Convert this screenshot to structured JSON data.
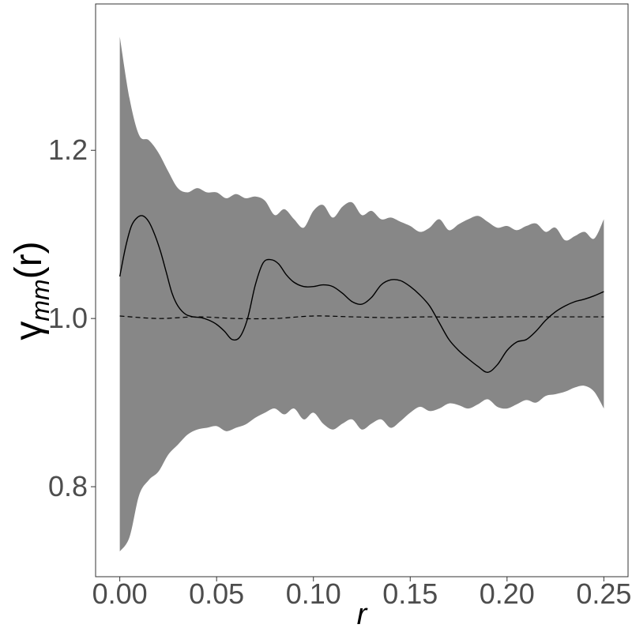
{
  "chart_data": {
    "type": "line",
    "title": "",
    "xlabel": "r",
    "ylabel": {
      "base": "γ",
      "subscript": "mm",
      "suffix": "(r)"
    },
    "xlim": [
      -0.0125,
      0.2625
    ],
    "ylim": [
      0.693,
      1.374
    ],
    "xticks": [
      0.0,
      0.05,
      0.1,
      0.15,
      0.2,
      0.25
    ],
    "xtick_labels": [
      "0.00",
      "0.05",
      "0.10",
      "0.15",
      "0.20",
      "0.25"
    ],
    "yticks": [
      0.8,
      1.0,
      1.2
    ],
    "ytick_labels": [
      "0.8",
      "1.0",
      "1.2"
    ],
    "grid": false,
    "legend": "none",
    "colors": {
      "envelope": "#878787",
      "line": "#000000",
      "axis": "#333333",
      "tick_text": "#4d4d4d"
    },
    "envelope": {
      "x": [
        0.0,
        0.005,
        0.01,
        0.015,
        0.02,
        0.025,
        0.03,
        0.035,
        0.04,
        0.045,
        0.05,
        0.055,
        0.06,
        0.065,
        0.07,
        0.075,
        0.08,
        0.085,
        0.09,
        0.095,
        0.1,
        0.105,
        0.11,
        0.115,
        0.12,
        0.125,
        0.13,
        0.135,
        0.14,
        0.145,
        0.15,
        0.155,
        0.16,
        0.165,
        0.17,
        0.175,
        0.18,
        0.185,
        0.19,
        0.195,
        0.2,
        0.205,
        0.21,
        0.215,
        0.22,
        0.225,
        0.23,
        0.235,
        0.24,
        0.245,
        0.25
      ],
      "upper": [
        1.335,
        1.262,
        1.218,
        1.212,
        1.197,
        1.175,
        1.155,
        1.15,
        1.155,
        1.15,
        1.15,
        1.143,
        1.148,
        1.143,
        1.145,
        1.14,
        1.123,
        1.13,
        1.118,
        1.108,
        1.128,
        1.135,
        1.12,
        1.133,
        1.138,
        1.123,
        1.128,
        1.118,
        1.12,
        1.115,
        1.11,
        1.103,
        1.108,
        1.118,
        1.105,
        1.112,
        1.118,
        1.122,
        1.115,
        1.108,
        1.11,
        1.105,
        1.11,
        1.113,
        1.103,
        1.108,
        1.093,
        1.098,
        1.103,
        1.095,
        1.118
      ],
      "lower": [
        0.723,
        0.74,
        0.79,
        0.808,
        0.818,
        0.838,
        0.85,
        0.862,
        0.868,
        0.87,
        0.872,
        0.866,
        0.87,
        0.874,
        0.882,
        0.888,
        0.893,
        0.886,
        0.893,
        0.88,
        0.888,
        0.875,
        0.868,
        0.875,
        0.88,
        0.868,
        0.875,
        0.88,
        0.87,
        0.878,
        0.888,
        0.895,
        0.89,
        0.893,
        0.899,
        0.897,
        0.893,
        0.898,
        0.904,
        0.895,
        0.893,
        0.898,
        0.903,
        0.9,
        0.908,
        0.91,
        0.913,
        0.918,
        0.92,
        0.913,
        0.893
      ]
    },
    "series": [
      {
        "style": "solid",
        "x": [
          0.0,
          0.003,
          0.006,
          0.009,
          0.012,
          0.015,
          0.018,
          0.021,
          0.024,
          0.027,
          0.03,
          0.034,
          0.038,
          0.042,
          0.046,
          0.05,
          0.054,
          0.058,
          0.062,
          0.066,
          0.07,
          0.074,
          0.078,
          0.082,
          0.086,
          0.09,
          0.095,
          0.1,
          0.105,
          0.11,
          0.115,
          0.12,
          0.125,
          0.13,
          0.135,
          0.14,
          0.145,
          0.15,
          0.155,
          0.16,
          0.165,
          0.17,
          0.175,
          0.18,
          0.185,
          0.19,
          0.195,
          0.2,
          0.205,
          0.21,
          0.215,
          0.22,
          0.225,
          0.23,
          0.235,
          0.24,
          0.245,
          0.25
        ],
        "y": [
          1.05,
          1.085,
          1.11,
          1.12,
          1.122,
          1.115,
          1.1,
          1.08,
          1.055,
          1.03,
          1.015,
          1.005,
          1.002,
          1.001,
          0.998,
          0.993,
          0.985,
          0.975,
          0.978,
          1.0,
          1.04,
          1.066,
          1.07,
          1.065,
          1.052,
          1.043,
          1.038,
          1.038,
          1.04,
          1.038,
          1.03,
          1.02,
          1.017,
          1.025,
          1.04,
          1.046,
          1.045,
          1.038,
          1.028,
          1.015,
          0.995,
          0.975,
          0.962,
          0.952,
          0.943,
          0.936,
          0.945,
          0.962,
          0.972,
          0.975,
          0.985,
          0.998,
          1.008,
          1.015,
          1.02,
          1.023,
          1.027,
          1.032
        ]
      },
      {
        "style": "dashed",
        "x": [
          0.0,
          0.02,
          0.04,
          0.06,
          0.08,
          0.1,
          0.12,
          0.14,
          0.16,
          0.18,
          0.2,
          0.22,
          0.24,
          0.25
        ],
        "y": [
          1.003,
          1.0,
          1.002,
          1.0,
          1.0,
          1.003,
          1.002,
          1.001,
          1.002,
          1.001,
          1.002,
          1.002,
          1.002,
          1.002
        ]
      }
    ]
  }
}
